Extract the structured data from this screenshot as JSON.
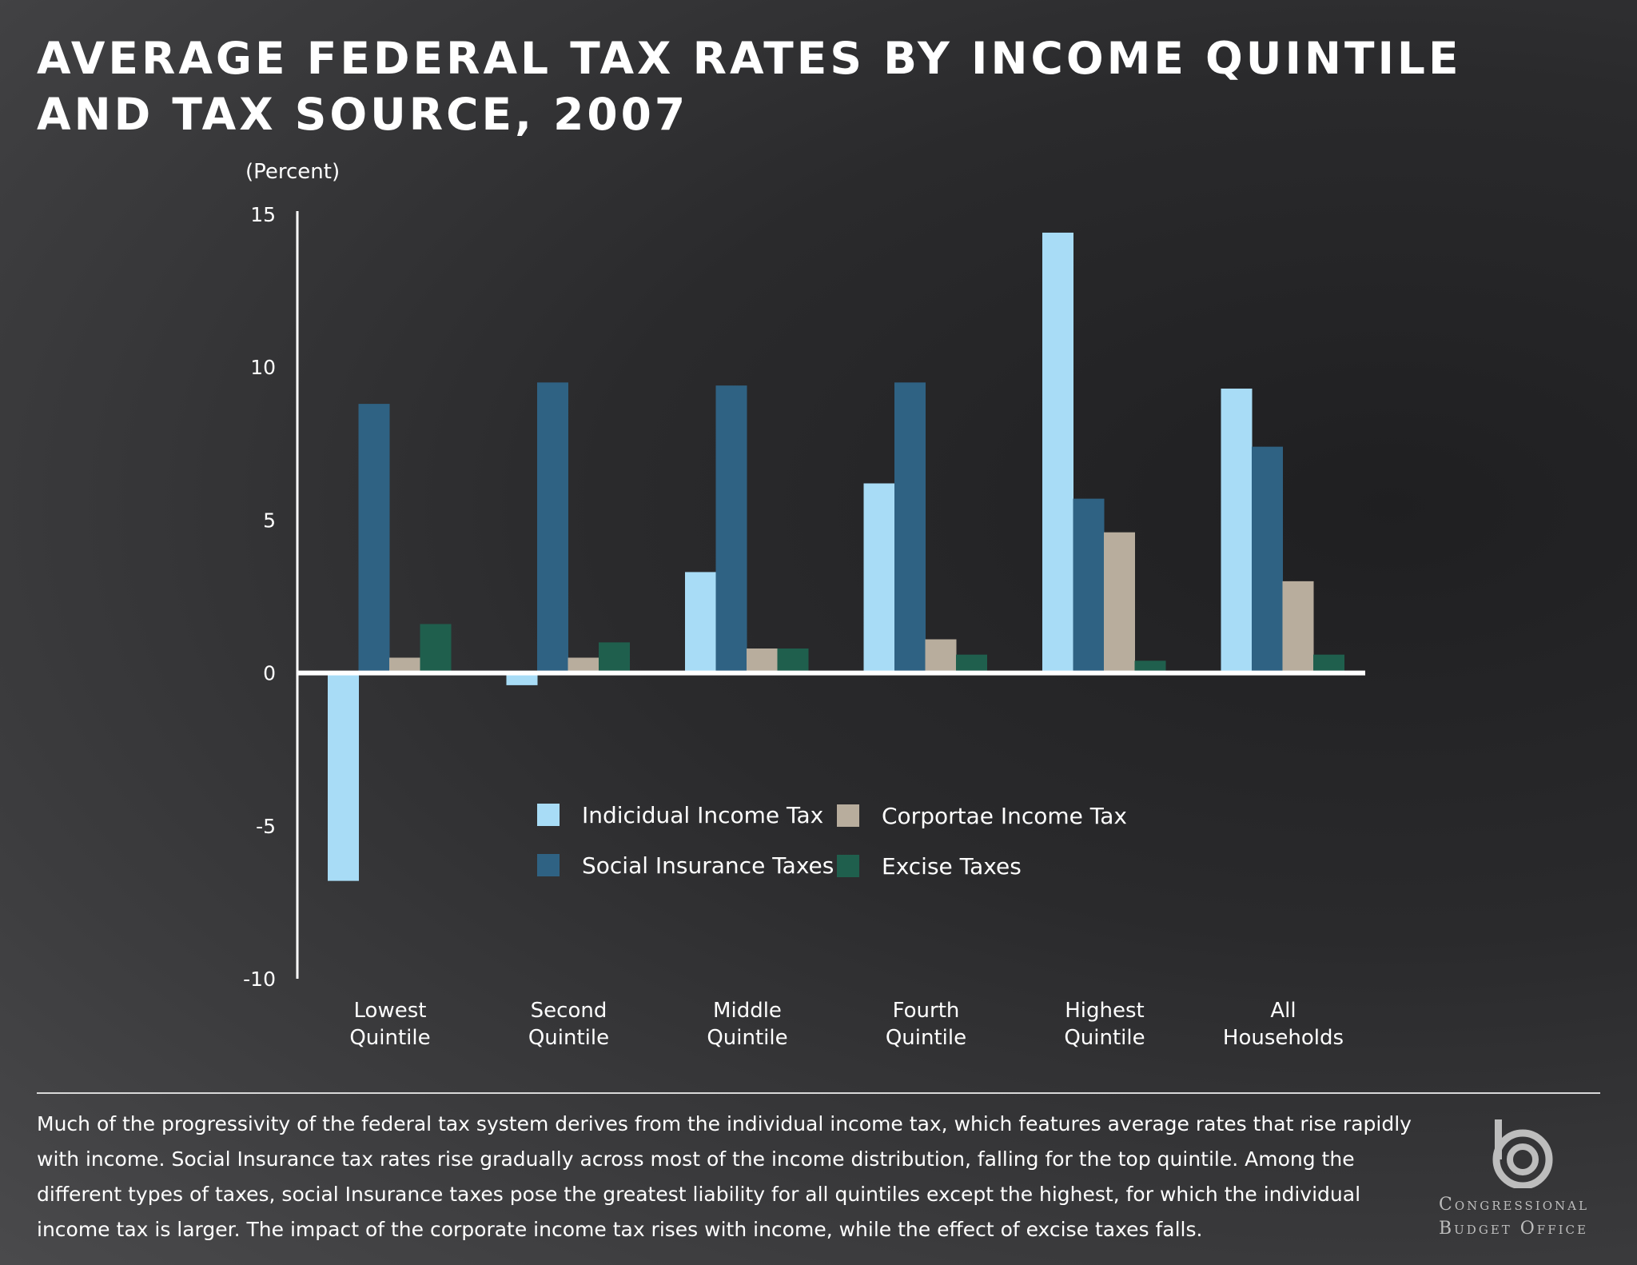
{
  "title": {
    "line1": "AVERAGE FEDERAL TAX RATES BY INCOME QUINTILE",
    "line2": "AND TAX SOURCE, 2007"
  },
  "chart_data": {
    "type": "bar",
    "ylabel": "(Percent)",
    "ylim": [
      -10,
      15
    ],
    "yticks": [
      15,
      10,
      5,
      0,
      -5,
      -10
    ],
    "categories": [
      [
        "Lowest",
        "Quintile"
      ],
      [
        "Second",
        "Quintile"
      ],
      [
        "Middle",
        "Quintile"
      ],
      [
        "Fourth",
        "Quintile"
      ],
      [
        "Highest",
        "Quintile"
      ],
      [
        "All",
        "Households"
      ]
    ],
    "series": [
      {
        "name": "Indicidual Income Tax",
        "color": "#a8dcf6",
        "values": [
          -6.8,
          -0.4,
          3.3,
          6.2,
          14.4,
          9.3
        ]
      },
      {
        "name": "Social Insurance Taxes",
        "color": "#2f6283",
        "values": [
          8.8,
          9.5,
          9.4,
          9.5,
          5.7,
          7.4
        ]
      },
      {
        "name": "Corportae Income Tax",
        "color": "#b8ad9d",
        "values": [
          0.5,
          0.5,
          0.8,
          1.1,
          4.6,
          3.0
        ]
      },
      {
        "name": "Excise Taxes",
        "color": "#1f5f4d",
        "values": [
          1.6,
          1.0,
          0.8,
          0.6,
          0.4,
          0.6
        ]
      }
    ],
    "legend": "center"
  },
  "caption": "Much of the progressivity of the federal tax system derives from the individual income tax, which features average rates that rise rapidly with income. Social Insurance tax rates rise gradually across most of the income distribution, falling for the top quintile. Among the different types of taxes, social Insurance taxes pose the greatest liability for all quintiles except the highest, for which the individual income tax is larger. The impact of the corporate income tax rises with income, while the effect of excise taxes falls.",
  "logo": {
    "line1": "Congressional",
    "line2": "Budget Office"
  }
}
